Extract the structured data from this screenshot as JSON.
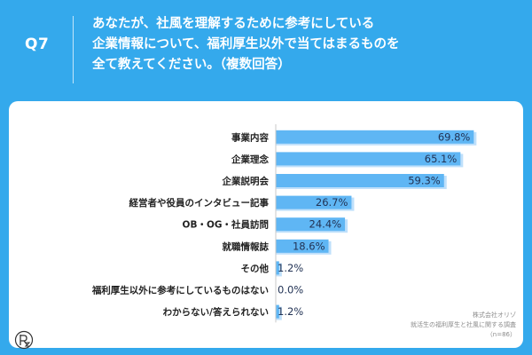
{
  "question": {
    "number": "Q7",
    "lines": [
      "あなたが、社風を理解するために参考にしている",
      "企業情報について、福利厚生以外で当てはまるものを",
      "全て教えてください。（複数回答）"
    ]
  },
  "source": {
    "company": "株式会社オリゾ",
    "survey": "就活生の福利厚生と社風に関する調査",
    "sample": "（n=86）"
  },
  "colors": {
    "background": "#34a9ec",
    "bar": "#5fb6f4",
    "bar_shadow": "#bfe0fb",
    "axis": "#c9c9c9"
  },
  "icons": {
    "logo": "orizo-logo-icon"
  },
  "chart_data": {
    "type": "bar",
    "orientation": "horizontal",
    "categories": [
      "事業内容",
      "企業理念",
      "企業説明会",
      "経営者や役員のインタビュー記事",
      "OB・OG・社員訪問",
      "就職情報誌",
      "その他",
      "福利厚生以外に参考にしているものはない",
      "わからない/答えられない"
    ],
    "values": [
      69.8,
      65.1,
      59.3,
      26.7,
      24.4,
      18.6,
      1.2,
      0.0,
      1.2
    ],
    "value_labels": [
      "69.8%",
      "65.1%",
      "59.3%",
      "26.7%",
      "24.4%",
      "18.6%",
      "1.2%",
      "0.0%",
      "1.2%"
    ],
    "xlim": [
      0,
      100
    ],
    "grid": false,
    "legend": "none"
  }
}
